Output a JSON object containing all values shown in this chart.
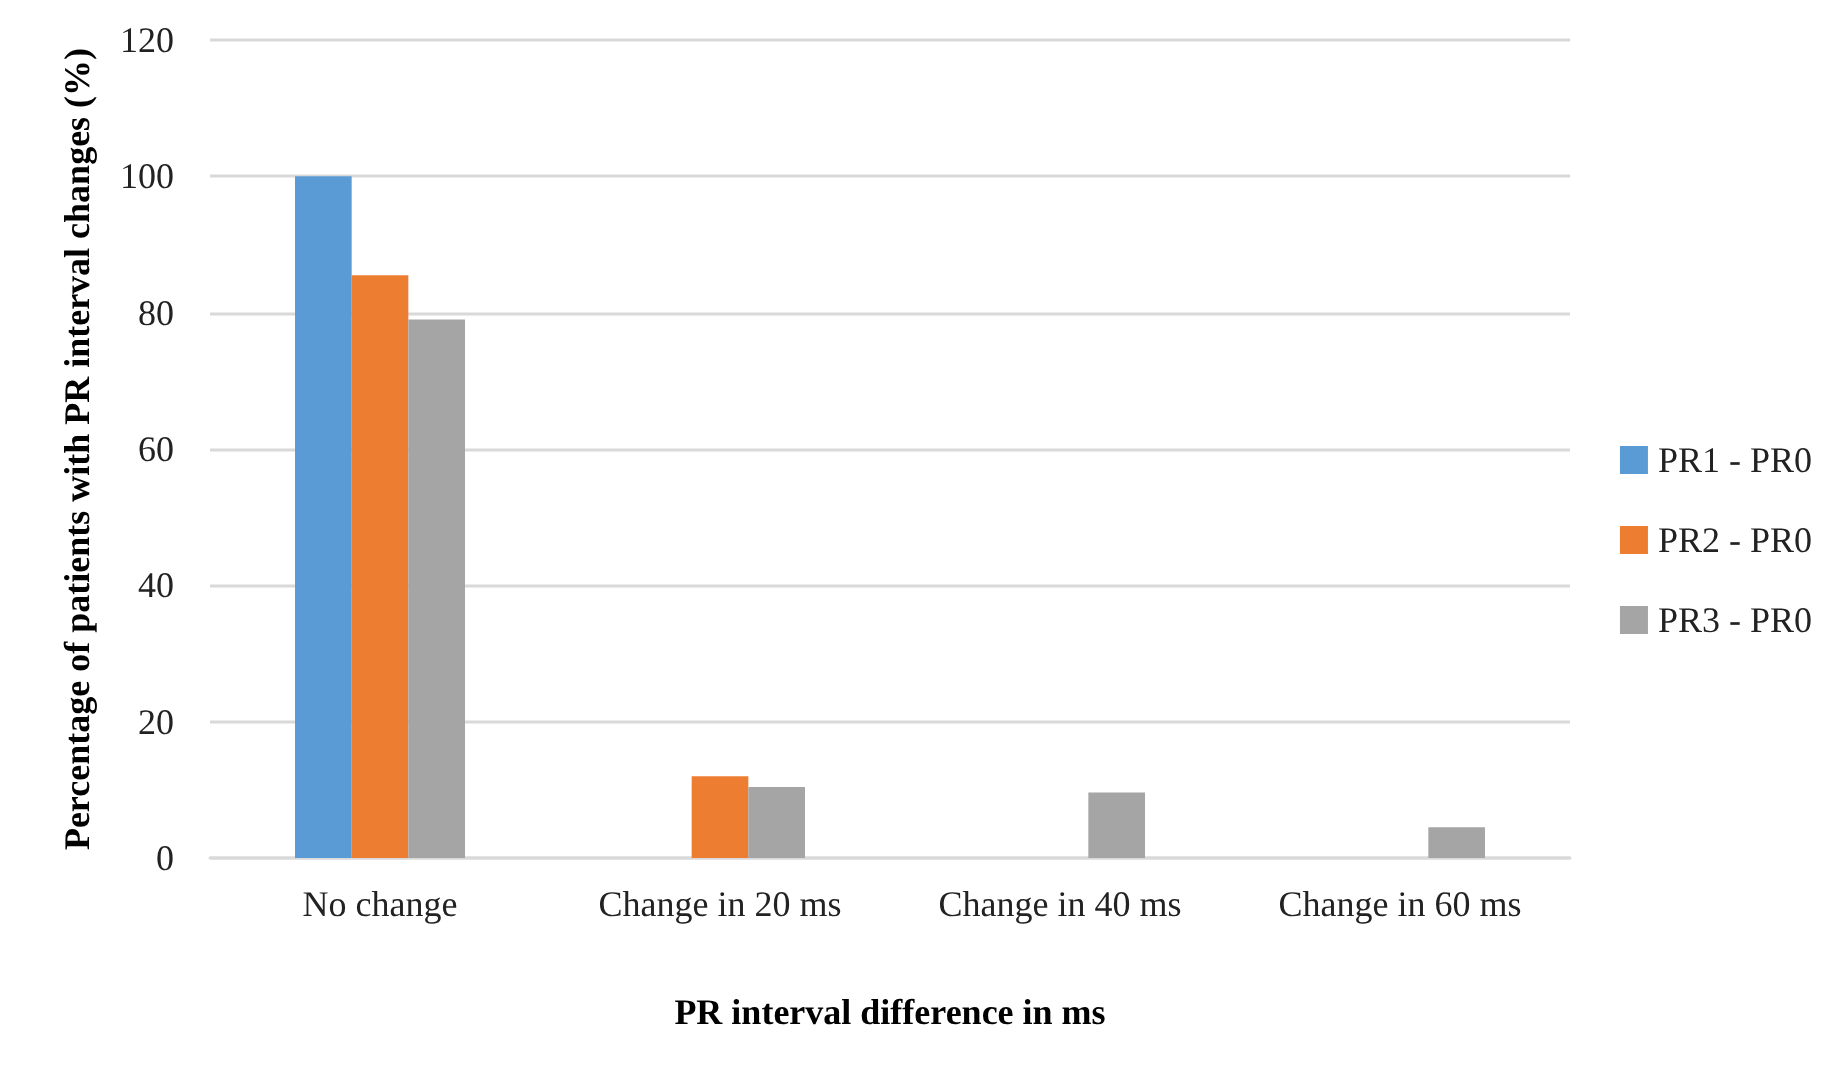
{
  "chart_data": {
    "type": "bar",
    "xlabel": "PR interval difference in ms",
    "ylabel": "Percentage of patients with PR interval changes (%)",
    "categories": [
      "No change",
      "Change in 20 ms",
      "Change in 40 ms",
      "Change in 60 ms"
    ],
    "series": [
      {
        "name": "PR1 - PR0",
        "color": "#5b9bd5",
        "values": [
          100,
          0,
          0,
          0
        ]
      },
      {
        "name": "PR2 - PR0",
        "color": "#ed7d31",
        "values": [
          85.5,
          12,
          0,
          0
        ]
      },
      {
        "name": "PR3 - PR0",
        "color": "#a5a5a5",
        "values": [
          79,
          10.4,
          9.6,
          4.5
        ]
      }
    ],
    "ylim": [
      0,
      120
    ],
    "yticks": [
      0,
      20,
      40,
      60,
      80,
      100,
      120
    ],
    "grid": "y",
    "legend": "right"
  }
}
